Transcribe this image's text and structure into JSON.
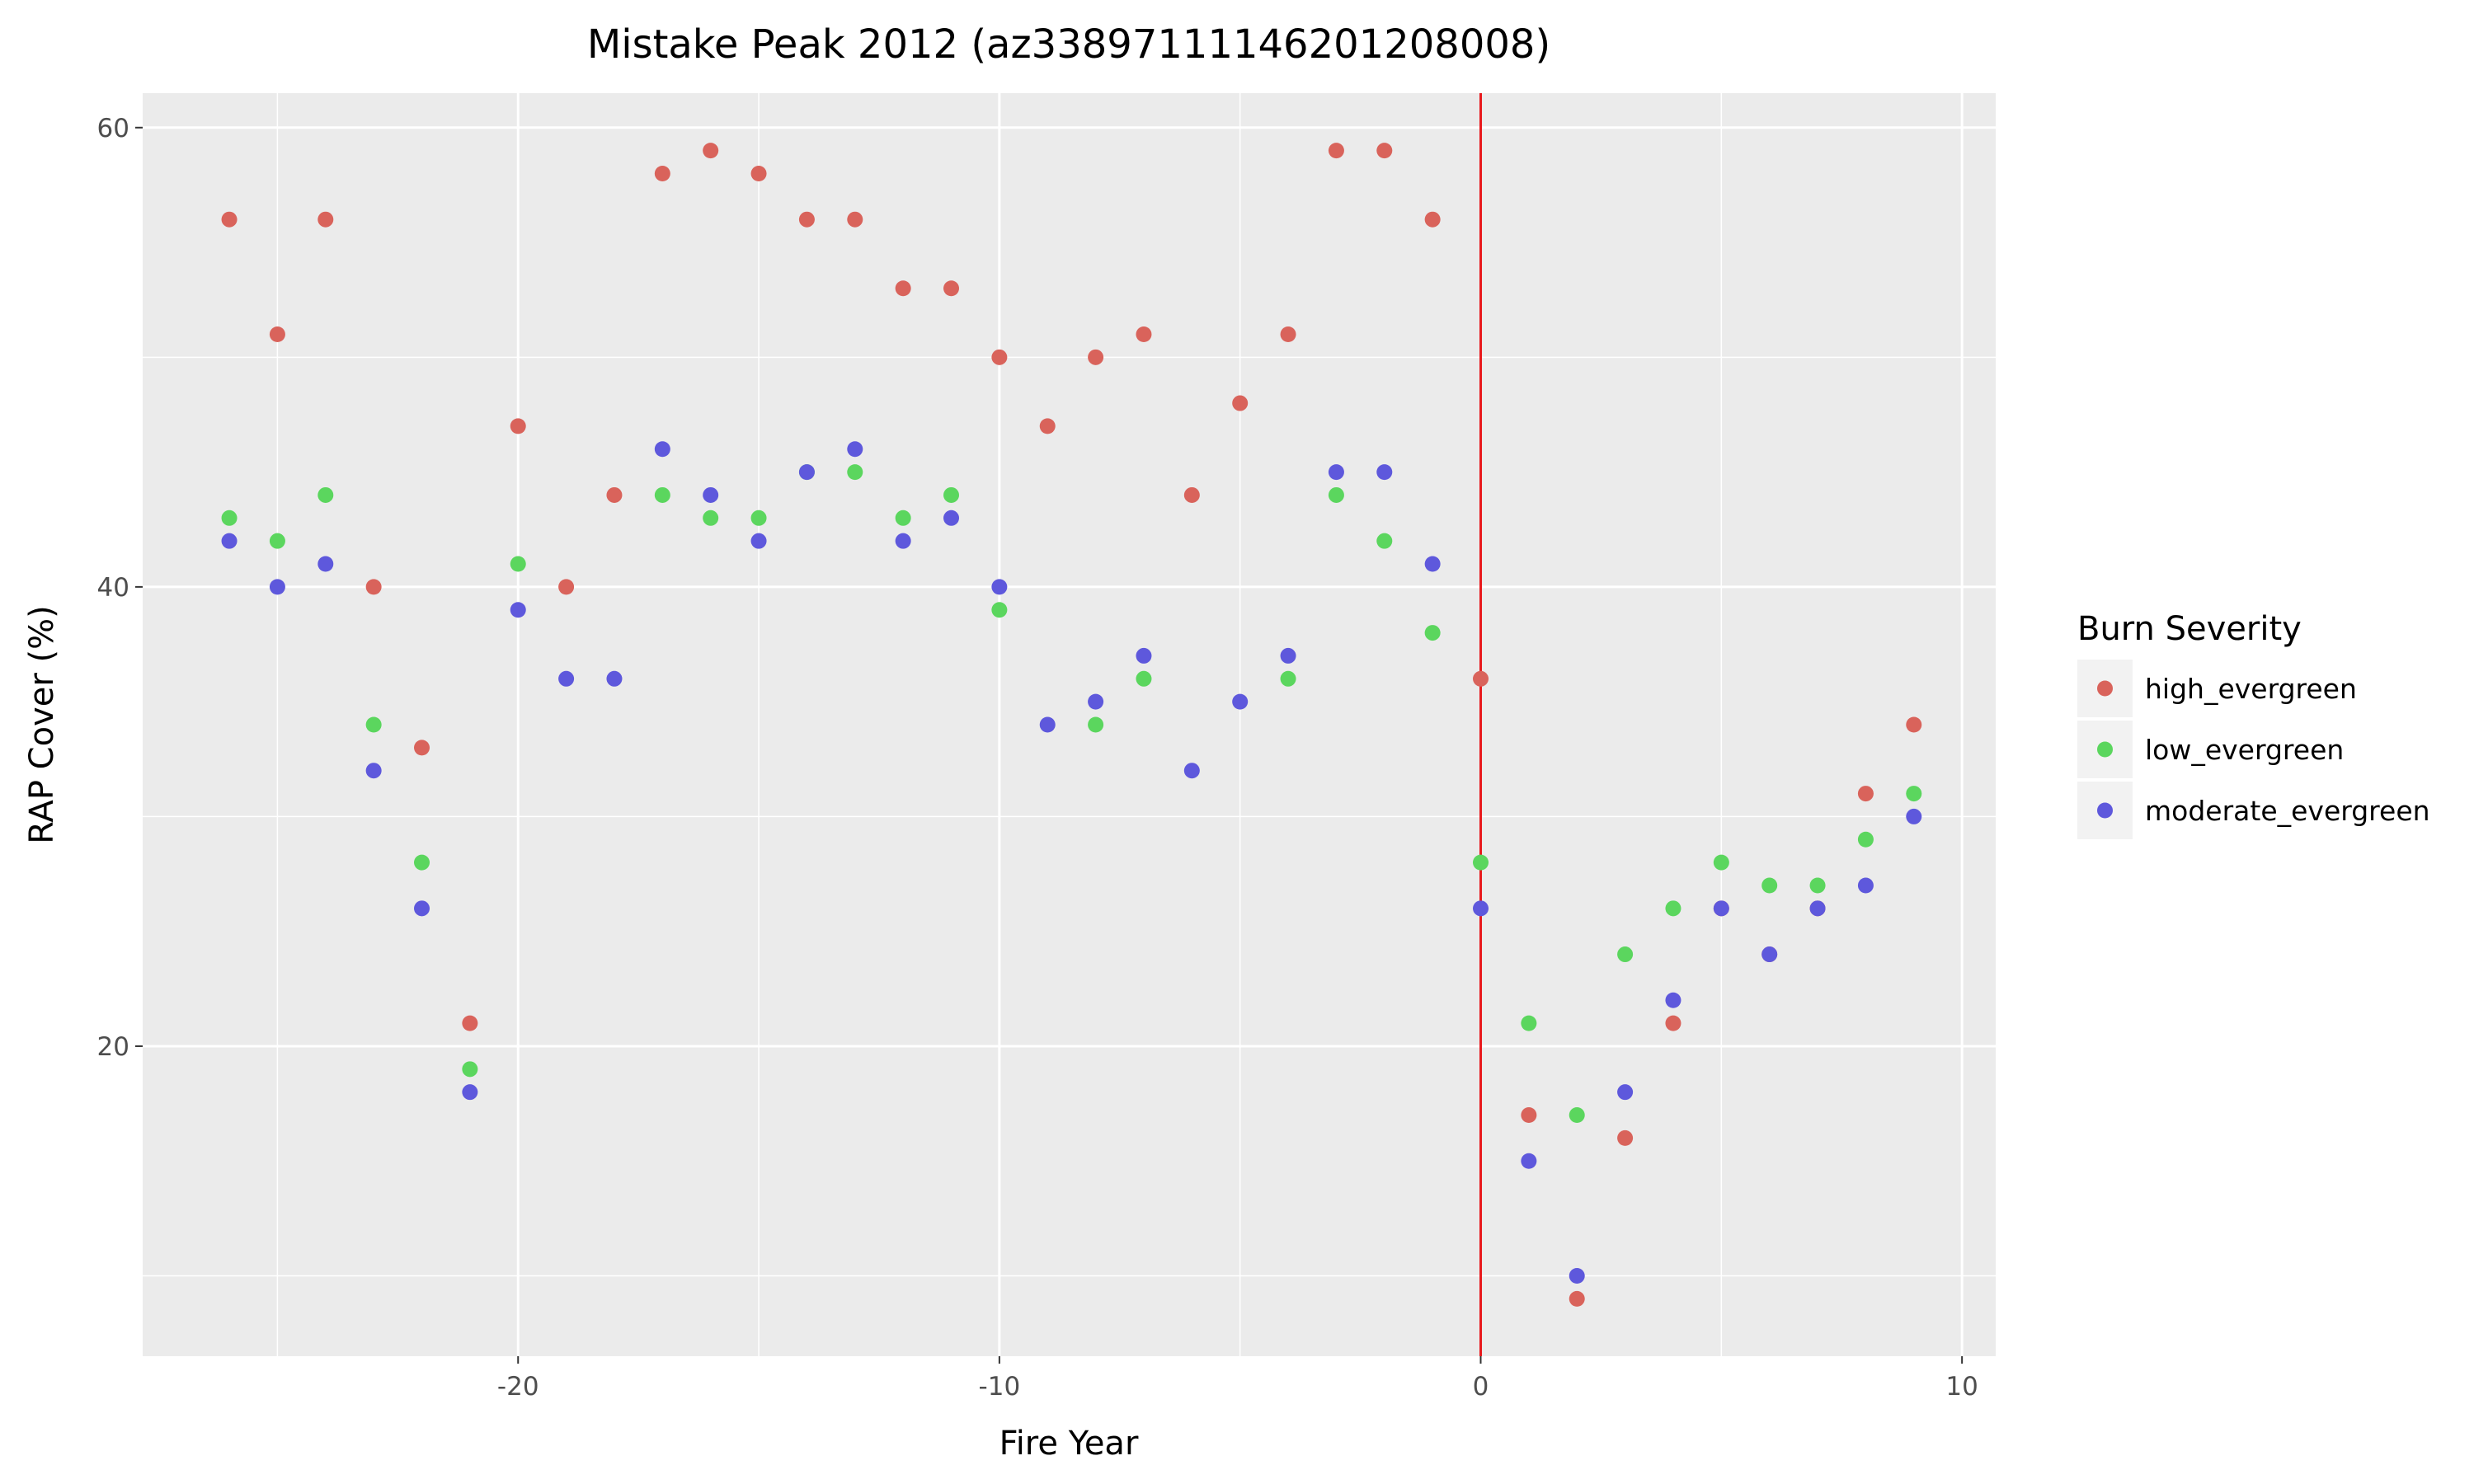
{
  "chart_data": {
    "type": "scatter",
    "title": "Mistake Peak 2012 (az33897111146201208008)",
    "xlabel": "Fire Year",
    "ylabel": "RAP Cover (%)",
    "xlim": [
      -27.8,
      10.7
    ],
    "ylim": [
      6.5,
      61.5
    ],
    "xticks": [
      -20,
      -10,
      0,
      10
    ],
    "xtick_labels": [
      "-20",
      "-10",
      "0",
      "10"
    ],
    "yticks": [
      20,
      40,
      60
    ],
    "ytick_labels": [
      "20",
      "40",
      "60"
    ],
    "grid": true,
    "vline": {
      "x": 0,
      "color": "#e8191c"
    },
    "legend": {
      "title": "Burn Severity",
      "position": "right"
    },
    "series": [
      {
        "name": "high_evergreen",
        "color": "#d9635b",
        "x": [
          -26,
          -25,
          -24,
          -23,
          -22,
          -21,
          -20,
          -19,
          -18,
          -17,
          -16,
          -15,
          -14,
          -13,
          -12,
          -11,
          -10,
          -9,
          -8,
          -7,
          -6,
          -5,
          -4,
          -3,
          -2,
          -1,
          0,
          1,
          2,
          3,
          4,
          5,
          6,
          7,
          8,
          9
        ],
        "y": [
          56,
          51,
          56,
          40,
          33,
          21,
          47,
          40,
          44,
          58,
          59,
          58,
          56,
          56,
          53,
          53,
          50,
          47,
          50,
          51,
          44,
          48,
          51,
          59,
          59,
          56,
          36,
          17,
          9,
          16,
          21,
          26,
          24,
          26,
          31,
          34
        ]
      },
      {
        "name": "low_evergreen",
        "color": "#5bd65e",
        "x": [
          -26,
          -25,
          -24,
          -23,
          -22,
          -21,
          -20,
          -17,
          -16,
          -15,
          -14,
          -13,
          -12,
          -11,
          -10,
          -8,
          -7,
          -4,
          -3,
          -2,
          -1,
          0,
          1,
          2,
          3,
          4,
          5,
          6,
          7,
          8,
          9
        ],
        "y": [
          43,
          42,
          44,
          34,
          28,
          19,
          41,
          44,
          43,
          43,
          45,
          45,
          43,
          44,
          39,
          34,
          36,
          36,
          44,
          42,
          38,
          28,
          21,
          17,
          24,
          26,
          28,
          27,
          27,
          29,
          31
        ]
      },
      {
        "name": "moderate_evergreen",
        "color": "#5e58dc",
        "x": [
          -26,
          -25,
          -24,
          -23,
          -22,
          -21,
          -20,
          -19,
          -18,
          -17,
          -16,
          -15,
          -14,
          -13,
          -12,
          -11,
          -10,
          -9,
          -8,
          -7,
          -6,
          -5,
          -4,
          -3,
          -2,
          -1,
          0,
          1,
          2,
          3,
          4,
          5,
          6,
          7,
          8,
          9
        ],
        "y": [
          42,
          40,
          41,
          32,
          26,
          18,
          39,
          36,
          36,
          46,
          44,
          42,
          45,
          46,
          42,
          43,
          40,
          34,
          35,
          37,
          32,
          35,
          37,
          45,
          45,
          41,
          26,
          15,
          10,
          18,
          22,
          26,
          24,
          26,
          27,
          30
        ]
      }
    ]
  }
}
